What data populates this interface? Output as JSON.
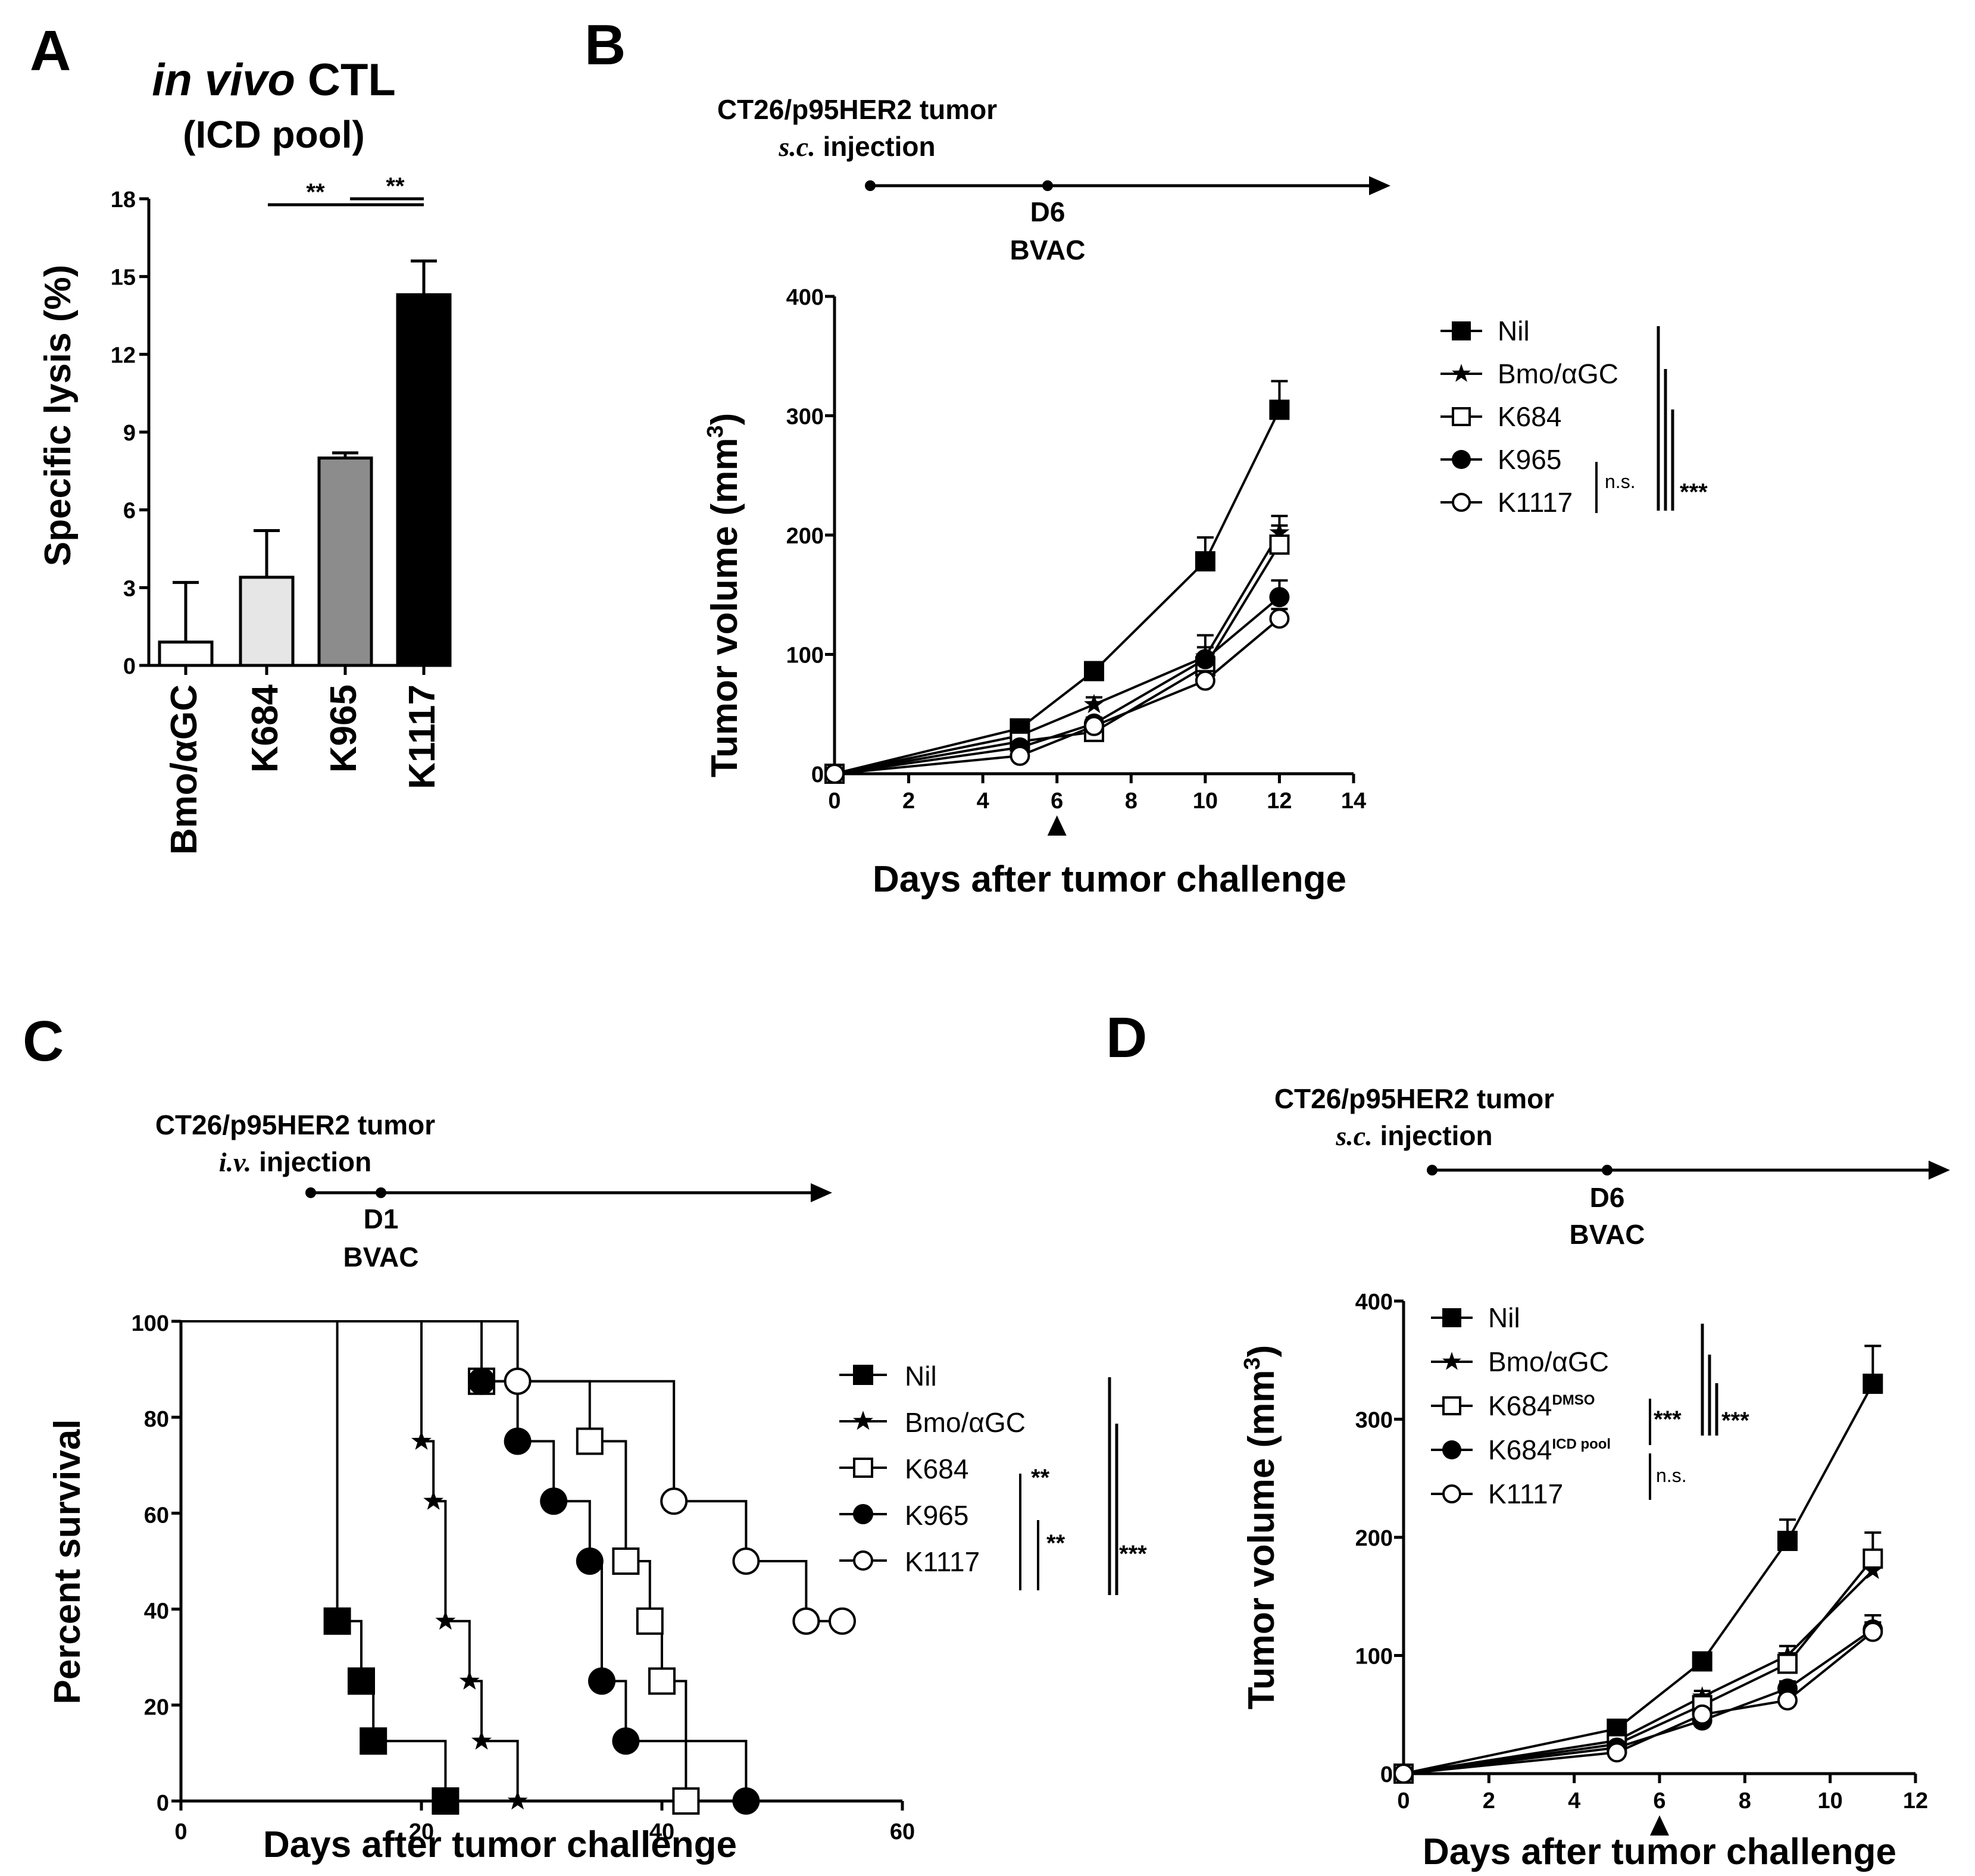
{
  "colors": {
    "ink": "#000000",
    "bar_bmo": "#ffffff",
    "bar_k684": "#e6e6e6",
    "bar_k965": "#8c8c8c",
    "bar_k1117": "#000000"
  },
  "chart_data": [
    {
      "panel": "A",
      "type": "bar",
      "title_italic": "in vivo",
      "title_rest": " CTL",
      "subtitle": "(ICD pool)",
      "categories": [
        "Bmo/αGC",
        "K684",
        "K965",
        "K1117"
      ],
      "values": [
        0.9,
        3.4,
        8.0,
        14.3
      ],
      "errors": [
        2.3,
        1.8,
        0.2,
        1.3
      ],
      "ylabel": "Specific lysis (%)",
      "ylim": [
        0,
        18
      ],
      "yticks": [
        "0",
        "3",
        "6",
        "9",
        "12",
        "15",
        "18"
      ],
      "significance": [
        {
          "from": 1,
          "to": 3,
          "label": "**"
        },
        {
          "from": 2,
          "to": 3,
          "label": "**"
        }
      ]
    },
    {
      "panel": "B",
      "type": "line",
      "timeline": {
        "title": "CT26/p95HER2 tumor",
        "injection_route": "s.c.",
        "injection_text": " injection",
        "day_label": "D6",
        "vaccine_label": "BVAC"
      },
      "xlabel": "Days after tumor challenge",
      "ylabel": "Tumor volume (mm",
      "ylabel_sup": "3",
      "ylabel_close": ")",
      "xlim": [
        0,
        14
      ],
      "ylim": [
        0,
        400
      ],
      "xticks": [
        "0",
        "2",
        "4",
        "6",
        "8",
        "10",
        "12",
        "14"
      ],
      "yticks": [
        "0",
        "100",
        "200",
        "300",
        "400"
      ],
      "arrow_day": 6,
      "x": [
        0,
        5,
        7,
        10,
        12
      ],
      "series": [
        {
          "name": "Nil",
          "marker": "square-filled",
          "values": [
            0,
            38,
            86,
            178,
            305
          ],
          "err": [
            0,
            4,
            6,
            20,
            24
          ]
        },
        {
          "name": "Bmo/αGC",
          "marker": "star",
          "values": [
            0,
            32,
            58,
            98,
            202
          ],
          "err": [
            0,
            3,
            6,
            18,
            14
          ]
        },
        {
          "name": "K684",
          "marker": "square-open",
          "values": [
            0,
            27,
            35,
            90,
            192
          ],
          "err": [
            0,
            3,
            5,
            10,
            16
          ]
        },
        {
          "name": "K965",
          "marker": "circle-filled",
          "values": [
            0,
            22,
            42,
            96,
            148
          ],
          "err": [
            0,
            3,
            5,
            10,
            14
          ]
        },
        {
          "name": "K1117",
          "marker": "circle-open",
          "values": [
            0,
            15,
            40,
            78,
            130
          ],
          "err": [
            0,
            3,
            5,
            8,
            8
          ]
        }
      ],
      "significance": [
        {
          "label": "n.s."
        },
        {
          "label": "***"
        }
      ]
    },
    {
      "panel": "C",
      "type": "line",
      "timeline": {
        "title": "CT26/p95HER2 tumor",
        "injection_route": "i.v.",
        "injection_text": " injection",
        "day_label": "D1",
        "vaccine_label": "BVAC"
      },
      "xlabel": "Days after tumor challenge",
      "ylabel": "Percent survival",
      "xlim": [
        0,
        60
      ],
      "ylim": [
        0,
        100
      ],
      "xticks": [
        "0",
        "20",
        "40",
        "60"
      ],
      "yticks": [
        "0",
        "20",
        "40",
        "60",
        "80",
        "100"
      ],
      "series": [
        {
          "name": "Nil",
          "marker": "square-filled",
          "steps": [
            [
              0,
              100
            ],
            [
              13,
              37.5
            ],
            [
              15,
              25
            ],
            [
              16,
              12.5
            ],
            [
              22,
              0
            ]
          ]
        },
        {
          "name": "Bmo/αGC",
          "marker": "star",
          "steps": [
            [
              0,
              100
            ],
            [
              20,
              75
            ],
            [
              21,
              62.5
            ],
            [
              22,
              37.5
            ],
            [
              24,
              25
            ],
            [
              25,
              12.5
            ],
            [
              28,
              0
            ]
          ]
        },
        {
          "name": "K684",
          "marker": "square-open",
          "steps": [
            [
              0,
              100
            ],
            [
              25,
              87.5
            ],
            [
              34,
              75
            ],
            [
              37,
              50
            ],
            [
              39,
              37.5
            ],
            [
              40,
              25
            ],
            [
              42,
              0
            ]
          ]
        },
        {
          "name": "K965",
          "marker": "circle-filled",
          "steps": [
            [
              0,
              100
            ],
            [
              25,
              87.5
            ],
            [
              28,
              75
            ],
            [
              31,
              62.5
            ],
            [
              34,
              50
            ],
            [
              35,
              25
            ],
            [
              37,
              12.5
            ],
            [
              47,
              0
            ]
          ]
        },
        {
          "name": "K1117",
          "marker": "circle-open",
          "steps": [
            [
              0,
              100
            ],
            [
              28,
              87.5
            ],
            [
              41,
              62.5
            ],
            [
              47,
              50
            ],
            [
              52,
              37.5
            ]
          ],
          "censor": [
            52,
            55
          ],
          "end": 55
        }
      ],
      "significance": [
        {
          "label": "**"
        },
        {
          "label": "**"
        },
        {
          "label": "***"
        }
      ]
    },
    {
      "panel": "D",
      "type": "line",
      "timeline": {
        "title": "CT26/p95HER2 tumor",
        "injection_route": "s.c.",
        "injection_text": " injection",
        "day_label": "D6",
        "vaccine_label": "BVAC"
      },
      "xlabel": "Days after tumor challenge",
      "ylabel": "Tumor volume (mm",
      "ylabel_sup": "3",
      "ylabel_close": ")",
      "xlim": [
        0,
        12
      ],
      "ylim": [
        0,
        400
      ],
      "xticks": [
        "0",
        "2",
        "4",
        "6",
        "8",
        "10",
        "12"
      ],
      "yticks": [
        "0",
        "100",
        "200",
        "300",
        "400"
      ],
      "arrow_day": 6,
      "x": [
        0,
        5,
        7,
        9,
        11
      ],
      "series": [
        {
          "name": "Nil",
          "name_sup": "",
          "marker": "square-filled",
          "values": [
            0,
            38,
            95,
            197,
            330
          ],
          "err": [
            0,
            3,
            5,
            18,
            32
          ]
        },
        {
          "name": "Bmo/αGC",
          "name_sup": "",
          "marker": "star",
          "values": [
            0,
            28,
            65,
            100,
            172
          ],
          "err": [
            0,
            3,
            5,
            8,
            16
          ]
        },
        {
          "name": "K684",
          "name_sup": "DMSO",
          "marker": "square-open",
          "values": [
            0,
            25,
            58,
            93,
            182
          ],
          "err": [
            0,
            3,
            5,
            8,
            22
          ]
        },
        {
          "name": "K684",
          "name_sup": "ICD pool",
          "marker": "circle-filled",
          "values": [
            0,
            22,
            45,
            72,
            122
          ],
          "err": [
            0,
            3,
            4,
            6,
            12
          ]
        },
        {
          "name": "K1117",
          "name_sup": "",
          "marker": "circle-open",
          "values": [
            0,
            18,
            50,
            62,
            120
          ],
          "err": [
            0,
            3,
            4,
            5,
            8
          ]
        }
      ],
      "significance": [
        {
          "label": "***"
        },
        {
          "label": "n.s."
        },
        {
          "label": "***"
        }
      ]
    }
  ]
}
